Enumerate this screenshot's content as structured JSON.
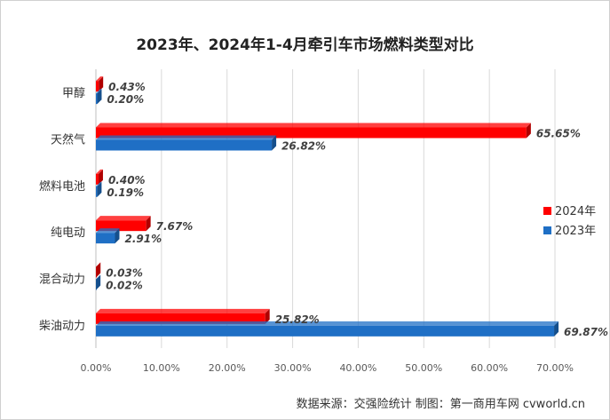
{
  "chart_data": {
    "type": "bar",
    "orientation": "horizontal",
    "title": "2023年、2024年1-4月牵引车市场燃料类型对比",
    "categories": [
      "甲醇",
      "天然气",
      "燃料电池",
      "纯电动",
      "混合动力",
      "柴油动力"
    ],
    "series": [
      {
        "name": "2024年",
        "values": [
          0.43,
          65.65,
          0.4,
          7.67,
          0.03,
          25.82
        ],
        "labels": [
          "0.43%",
          "65.65%",
          "0.40%",
          "7.67%",
          "0.03%",
          "25.82%"
        ]
      },
      {
        "name": "2023年",
        "values": [
          0.2,
          26.82,
          0.19,
          2.91,
          0.02,
          69.87
        ],
        "labels": [
          "0.20%",
          "26.82%",
          "0.19%",
          "2.91%",
          "0.02%",
          "69.87%"
        ]
      }
    ],
    "x_ticks": [
      "0.00%",
      "10.00%",
      "20.00%",
      "30.00%",
      "40.00%",
      "50.00%",
      "60.00%",
      "70.00%"
    ],
    "xlim": [
      0,
      70
    ],
    "grid": true,
    "legend_position": "right",
    "colors": {
      "2024年": "#ff0000",
      "2023年": "#1f6fc5"
    }
  },
  "source": "数据来源：交强险统计    制图：第一商用车网 cvworld.cn"
}
